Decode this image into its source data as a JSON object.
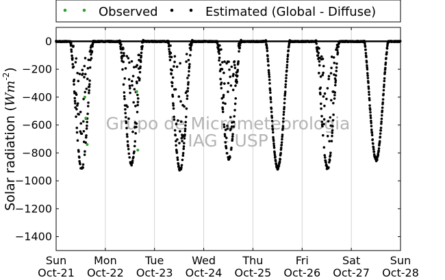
{
  "chart_data": {
    "type": "scatter",
    "title": "",
    "ylabel": "Solar radiation ($Wm^{-2}$)",
    "ylabel_text": "Solar radiation (",
    "ylabel_unit": "Wm",
    "ylabel_exp": "-2",
    "ylabel_close": ")",
    "xlabel": "",
    "xlim_days": [
      "Oct-21",
      "Oct-28"
    ],
    "ylim": [
      -1500,
      100
    ],
    "grid": "vertical",
    "legend_position": "top",
    "x_ticks": [
      {
        "day": "Sun",
        "date": "Oct-21"
      },
      {
        "day": "Mon",
        "date": "Oct-22"
      },
      {
        "day": "Tue",
        "date": "Oct-23"
      },
      {
        "day": "Wed",
        "date": "Oct-24"
      },
      {
        "day": "Thu",
        "date": "Oct-25"
      },
      {
        "day": "Fri",
        "date": "Oct-26"
      },
      {
        "day": "Sat",
        "date": "Oct-27"
      },
      {
        "day": "Sun",
        "date": "Oct-28"
      }
    ],
    "y_ticks": [
      0,
      -200,
      -400,
      -600,
      -800,
      -1000,
      -1200,
      -1400
    ],
    "series": [
      {
        "name": "Observed",
        "color": "#2ca02c",
        "points": [
          {
            "x": "Oct-21 14:00",
            "y": -400
          },
          {
            "x": "Oct-21 14:30",
            "y": -550
          },
          {
            "x": "Oct-21 15:10",
            "y": -740
          },
          {
            "x": "Oct-22 15:20",
            "y": -360
          },
          {
            "x": "Oct-22 15:50",
            "y": -780
          }
        ]
      },
      {
        "name": "Estimated (Global - Diffuse)",
        "color": "#000000",
        "days": [
          {
            "date": "Oct-21",
            "start_hour": 6.8,
            "end_hour": 18.2,
            "peak": -920,
            "cloudy": true
          },
          {
            "date": "Oct-22",
            "start_hour": 6.9,
            "end_hour": 18.5,
            "peak": -880,
            "cloudy": true
          },
          {
            "date": "Oct-23",
            "start_hour": 6.5,
            "end_hour": 18.4,
            "peak": -920,
            "cloudy": true
          },
          {
            "date": "Oct-24",
            "start_hour": 6.3,
            "end_hour": 18.2,
            "peak": -840,
            "cloudy": true
          },
          {
            "date": "Oct-25",
            "start_hour": 6.2,
            "end_hour": 18.0,
            "peak": -910,
            "cloudy": false
          },
          {
            "date": "Oct-26",
            "start_hour": 6.6,
            "end_hour": 18.2,
            "peak": -910,
            "cloudy": true
          },
          {
            "date": "Oct-27",
            "start_hour": 6.2,
            "end_hour": 18.1,
            "peak": -850,
            "cloudy": false
          }
        ]
      }
    ],
    "watermark": [
      "Grupo de Micrometeorologia",
      "IAG - USP"
    ]
  }
}
